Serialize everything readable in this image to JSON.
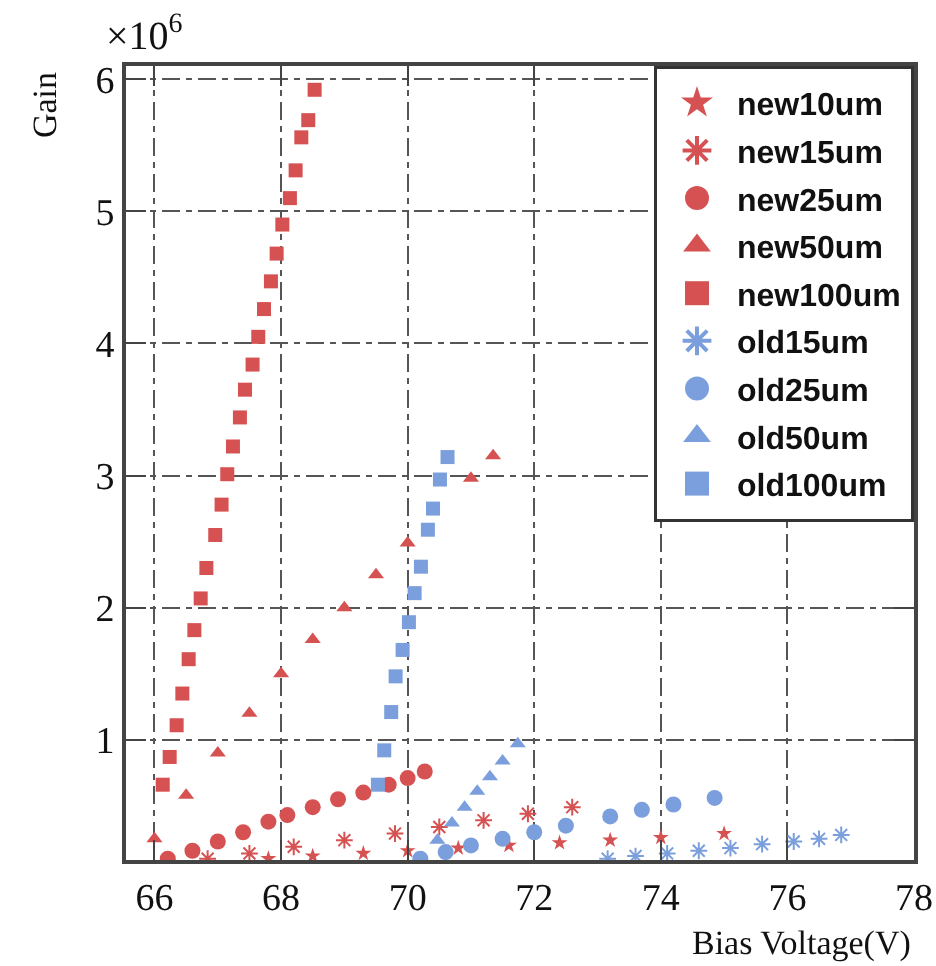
{
  "chart_data": {
    "type": "scatter",
    "xlabel": "Bias Voltage(V)",
    "ylabel": "Gain",
    "annotations": [
      "×10$^{6}$"
    ],
    "xlim": [
      65.55,
      78
    ],
    "xticks": [
      66,
      68,
      70,
      72,
      74,
      76,
      78
    ],
    "ylim": [
      0.09,
      6.1
    ],
    "yticks": [
      1,
      2,
      3,
      4,
      5,
      6
    ],
    "grid": true,
    "legend": "top right",
    "series": [
      {
        "name": "new10um",
        "color": "#d65252",
        "marker": "star",
        "x": [
          67.8,
          68.5,
          69.3,
          70.0,
          70.8,
          71.6,
          72.4,
          73.2,
          74.0,
          75.0
        ],
        "values": [
          0.1,
          0.12,
          0.14,
          0.16,
          0.18,
          0.2,
          0.22,
          0.24,
          0.26,
          0.29
        ]
      },
      {
        "name": "new15um",
        "color": "#d65252",
        "marker": "cross",
        "x": [
          66.84,
          67.5,
          68.2,
          69.0,
          69.8,
          70.5,
          71.2,
          71.9,
          72.6
        ],
        "values": [
          0.1,
          0.14,
          0.19,
          0.24,
          0.29,
          0.34,
          0.39,
          0.44,
          0.49
        ]
      },
      {
        "name": "new25um",
        "color": "#d65252",
        "marker": "circle",
        "x": [
          66.21,
          66.6,
          67.0,
          67.4,
          67.8,
          68.1,
          68.5,
          68.9,
          69.3,
          69.7,
          70.0,
          70.27
        ],
        "values": [
          0.1,
          0.16,
          0.23,
          0.3,
          0.38,
          0.43,
          0.49,
          0.55,
          0.6,
          0.66,
          0.71,
          0.76
        ]
      },
      {
        "name": "new50um",
        "color": "#d65252",
        "marker": "triangle",
        "x": [
          66.0,
          66.5,
          67.0,
          67.5,
          68.0,
          68.5,
          69.0,
          69.5,
          70.0,
          70.5,
          71.0,
          71.35
        ],
        "values": [
          0.25,
          0.58,
          0.9,
          1.2,
          1.5,
          1.76,
          2.0,
          2.25,
          2.49,
          null,
          2.98,
          3.15
        ]
      },
      {
        "name": "new100um",
        "color": "#d65252",
        "marker": "square",
        "x": [
          66.13,
          66.24,
          66.35,
          66.44,
          66.54,
          66.63,
          66.73,
          66.82,
          66.96,
          67.06,
          67.15,
          67.24,
          67.35,
          67.43,
          67.55,
          67.64,
          67.73,
          67.84,
          67.93,
          68.02,
          68.14,
          68.23,
          68.32,
          68.43,
          68.53
        ],
        "values": [
          0.66,
          0.87,
          1.11,
          1.35,
          1.61,
          1.83,
          2.07,
          2.3,
          2.55,
          2.78,
          3.01,
          3.22,
          3.44,
          3.65,
          3.84,
          4.05,
          4.26,
          4.47,
          4.68,
          4.9,
          5.1,
          5.31,
          5.56,
          5.69,
          5.92
        ]
      },
      {
        "name": "old15um",
        "color": "#7b9fdc",
        "marker": "cross",
        "x": [
          73.16,
          73.6,
          74.1,
          74.6,
          75.1,
          75.6,
          76.1,
          76.5,
          76.85
        ],
        "values": [
          0.1,
          0.12,
          0.14,
          0.16,
          0.18,
          0.21,
          0.23,
          0.25,
          0.28
        ]
      },
      {
        "name": "old25um",
        "color": "#7b9fdc",
        "marker": "circle",
        "x": [
          70.2,
          70.6,
          71.0,
          71.5,
          72.0,
          72.5,
          73.2,
          73.7,
          74.2,
          74.85
        ],
        "values": [
          0.1,
          0.15,
          0.2,
          0.25,
          0.3,
          0.35,
          0.42,
          0.47,
          0.51,
          0.56
        ]
      },
      {
        "name": "old50um",
        "color": "#7b9fdc",
        "marker": "triangle",
        "x": [
          70.47,
          70.7,
          70.9,
          71.1,
          71.3,
          71.5,
          71.74
        ],
        "values": [
          0.24,
          0.37,
          0.49,
          0.61,
          0.72,
          0.84,
          0.97
        ]
      },
      {
        "name": "old100um",
        "color": "#7b9fdc",
        "marker": "square",
        "x": [
          69.53,
          69.63,
          69.74,
          69.81,
          69.92,
          70.02,
          70.11,
          70.21,
          70.32,
          70.4,
          70.51,
          70.63
        ],
        "values": [
          0.66,
          0.92,
          1.21,
          1.48,
          1.68,
          1.89,
          2.11,
          2.31,
          2.59,
          2.75,
          2.97,
          3.14
        ]
      }
    ]
  }
}
